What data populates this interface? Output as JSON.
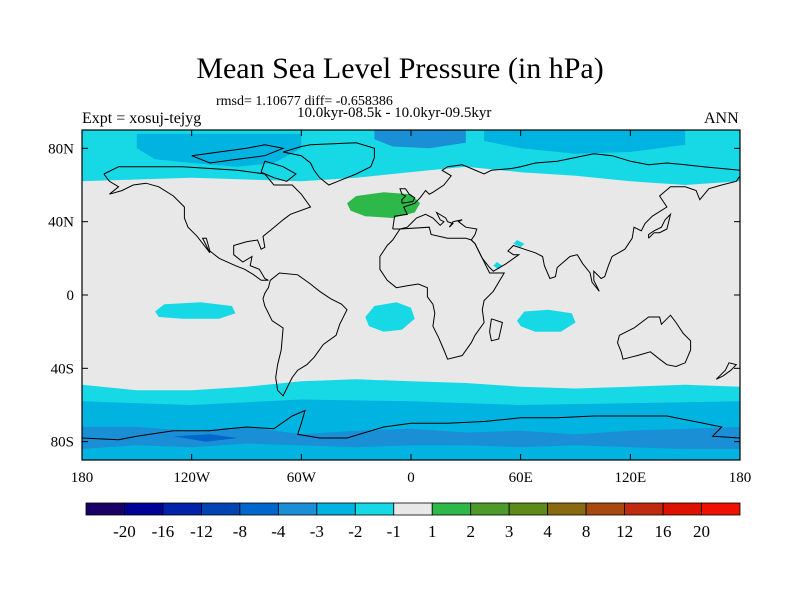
{
  "header": {
    "title": "Mean Sea Level Pressure (in hPa)",
    "stats": "rmsd= 1.10677 diff= -0.658386",
    "expt": "Expt = xosuj-tejyg",
    "period": "10.0kyr-08.5k - 10.0kyr-09.5kyr",
    "season": "ANN"
  },
  "chart_data": {
    "type": "heatmap",
    "title": "Mean Sea Level Pressure (in hPa)",
    "xlabel": "",
    "ylabel": "",
    "xlim": [
      -180,
      180
    ],
    "ylim": [
      -90,
      90
    ],
    "x_ticks": [
      {
        "value": -180,
        "label": "180"
      },
      {
        "value": -120,
        "label": "120W"
      },
      {
        "value": -60,
        "label": "60W"
      },
      {
        "value": 0,
        "label": "0"
      },
      {
        "value": 60,
        "label": "60E"
      },
      {
        "value": 120,
        "label": "120E"
      },
      {
        "value": 180,
        "label": "180"
      }
    ],
    "y_ticks": [
      {
        "value": 80,
        "label": "80N"
      },
      {
        "value": 40,
        "label": "40N"
      },
      {
        "value": 0,
        "label": "0"
      },
      {
        "value": -40,
        "label": "40S"
      },
      {
        "value": -80,
        "label": "80S"
      }
    ],
    "colorbar": {
      "levels": [
        "-20",
        "-16",
        "-12",
        "-8",
        "-4",
        "-3",
        "-2",
        "-1",
        "1",
        "2",
        "3",
        "4",
        "8",
        "12",
        "16",
        "20"
      ],
      "colors": [
        "#1a0066",
        "#000099",
        "#0022aa",
        "#0044b3",
        "#0066cc",
        "#1a8fd6",
        "#00b3e0",
        "#17d9e6",
        "#e8e8e8",
        "#2eb84a",
        "#4d9a2a",
        "#5e8a1a",
        "#8a6a10",
        "#a84a10",
        "#c02a10",
        "#dd1100",
        "#ee1100"
      ]
    },
    "regions": [
      {
        "name": "arctic-band",
        "value_range": "-2 to -1",
        "lon": [
          -180,
          180
        ],
        "lat": [
          62,
          90
        ]
      },
      {
        "name": "arctic-canada-low",
        "value_range": "-3 to -2",
        "lon": [
          -150,
          -60
        ],
        "lat": [
          70,
          88
        ]
      },
      {
        "name": "greenland-low",
        "value_range": "-4 to -3",
        "lon": [
          -20,
          30
        ],
        "lat": [
          80,
          90
        ]
      },
      {
        "name": "north-atlantic-high",
        "value_range": "1 to 2",
        "lon": [
          -35,
          5
        ],
        "lat": [
          42,
          56
        ]
      },
      {
        "name": "tropical-pacific-low",
        "value_range": "-2 to -1",
        "lon": [
          -140,
          -95
        ],
        "lat": [
          -13,
          -4
        ]
      },
      {
        "name": "tropical-atlantic-low",
        "value_range": "-2 to -1",
        "lon": [
          -25,
          2
        ],
        "lat": [
          -20,
          -5
        ]
      },
      {
        "name": "indian-ocean-low",
        "value_range": "-2 to -1",
        "lon": [
          58,
          90
        ],
        "lat": [
          -20,
          -8
        ]
      },
      {
        "name": "southern-ocean-band",
        "value_range": "-2 to -1",
        "lon": [
          -180,
          180
        ],
        "lat": [
          -90,
          -48
        ]
      },
      {
        "name": "antarctic-band",
        "value_range": "-3 to -2",
        "lon": [
          -180,
          180
        ],
        "lat": [
          -90,
          -60
        ]
      },
      {
        "name": "antarctic-low",
        "value_range": "-4 to -3",
        "lon": [
          -180,
          180
        ],
        "lat": [
          -85,
          -70
        ]
      }
    ]
  }
}
